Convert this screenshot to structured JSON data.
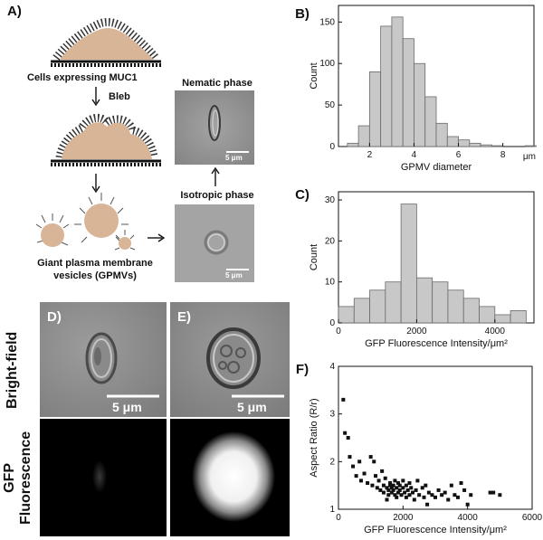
{
  "panelA": {
    "label": "A)",
    "cells_label": "Cells expressing MUC1",
    "bleb_label": "Bleb",
    "gpmv_label_line1": "Giant plasma membrane",
    "gpmv_label_line2": "vesicles (GPMVs)",
    "nematic_title": "Nematic phase",
    "isotropic_title": "Isotropic phase",
    "scale_nematic": "5 μm",
    "scale_isotropic": "5 μm"
  },
  "panelD": {
    "label": "D)",
    "scale": "5 μm"
  },
  "panelE": {
    "label": "E)",
    "scale": "5 μm"
  },
  "row_labels": {
    "brightfield": "Bright-field",
    "gfp_line1": "GFP",
    "gfp_line2": "Fluorescence"
  },
  "colors": {
    "cell": "#d8b596",
    "hist_fill": "#c8c8c8",
    "hist_edge": "#6a6a6a",
    "scatter": "#111111"
  },
  "chart_data": [
    {
      "panel": "B)",
      "type": "bar",
      "xlabel": "GPMV diameter",
      "x_unit": "μm",
      "ylabel": "Count",
      "xlim": [
        0.6,
        9.4
      ],
      "ylim": [
        0,
        170
      ],
      "xticks": [
        2,
        4,
        6,
        8
      ],
      "yticks": [
        0,
        50,
        100,
        150
      ],
      "bin_width": 0.5,
      "bin_starts": [
        1.0,
        1.5,
        2.0,
        2.5,
        3.0,
        3.5,
        4.0,
        4.5,
        5.0,
        5.5,
        6.0,
        6.5,
        7.0,
        7.5,
        8.0,
        8.5,
        9.0
      ],
      "values": [
        4,
        25,
        90,
        145,
        156,
        130,
        100,
        60,
        28,
        12,
        8,
        4,
        2,
        1,
        0,
        0,
        1
      ]
    },
    {
      "panel": "C)",
      "type": "bar",
      "xlabel": "GFP Fluorescence Intensity/μm²",
      "ylabel": "Count",
      "xlim": [
        0,
        5000
      ],
      "ylim": [
        0,
        32
      ],
      "xticks": [
        0,
        2000,
        4000
      ],
      "yticks": [
        0,
        10,
        20,
        30
      ],
      "bin_width": 400,
      "bin_starts": [
        0,
        400,
        800,
        1200,
        1600,
        2000,
        2400,
        2800,
        3200,
        3600,
        4000,
        4400
      ],
      "values": [
        4,
        6,
        8,
        10,
        29,
        11,
        10,
        8,
        6,
        4,
        2,
        3
      ]
    },
    {
      "panel": "F)",
      "type": "scatter",
      "xlabel": "GFP Fluorescence Intensity/μm²",
      "ylabel": "Aspect Ratio (R/r)",
      "xlim": [
        0,
        6000
      ],
      "ylim": [
        1,
        4
      ],
      "xticks": [
        0,
        2000,
        4000,
        6000
      ],
      "yticks": [
        1,
        2,
        3,
        4
      ],
      "points": [
        [
          150,
          3.3
        ],
        [
          200,
          2.6
        ],
        [
          300,
          2.5
        ],
        [
          350,
          2.1
        ],
        [
          450,
          1.9
        ],
        [
          550,
          1.7
        ],
        [
          650,
          2.0
        ],
        [
          700,
          1.6
        ],
        [
          800,
          1.75
        ],
        [
          900,
          1.55
        ],
        [
          1000,
          2.1
        ],
        [
          1050,
          1.5
        ],
        [
          1100,
          2.0
        ],
        [
          1150,
          1.7
        ],
        [
          1200,
          1.45
        ],
        [
          1250,
          1.6
        ],
        [
          1300,
          1.4
        ],
        [
          1350,
          1.8
        ],
        [
          1400,
          1.5
        ],
        [
          1400,
          1.35
        ],
        [
          1450,
          1.65
        ],
        [
          1500,
          1.45
        ],
        [
          1550,
          1.4
        ],
        [
          1550,
          1.3
        ],
        [
          1600,
          1.55
        ],
        [
          1600,
          1.5
        ],
        [
          1650,
          1.45
        ],
        [
          1650,
          1.35
        ],
        [
          1700,
          1.5
        ],
        [
          1700,
          1.4
        ],
        [
          1750,
          1.6
        ],
        [
          1750,
          1.3
        ],
        [
          1800,
          1.45
        ],
        [
          1800,
          1.25
        ],
        [
          1850,
          1.55
        ],
        [
          1850,
          1.35
        ],
        [
          1900,
          1.4
        ],
        [
          1900,
          1.5
        ],
        [
          1950,
          1.3
        ],
        [
          2000,
          1.45
        ],
        [
          2000,
          1.6
        ],
        [
          2050,
          1.35
        ],
        [
          2100,
          1.5
        ],
        [
          2100,
          1.25
        ],
        [
          2150,
          1.4
        ],
        [
          2200,
          1.55
        ],
        [
          2200,
          1.3
        ],
        [
          2250,
          1.45
        ],
        [
          2300,
          1.35
        ],
        [
          2350,
          1.2
        ],
        [
          2400,
          1.4
        ],
        [
          2500,
          1.3
        ],
        [
          2600,
          1.45
        ],
        [
          2650,
          1.25
        ],
        [
          2700,
          1.5
        ],
        [
          2800,
          1.35
        ],
        [
          2900,
          1.3
        ],
        [
          3000,
          1.25
        ],
        [
          3100,
          1.4
        ],
        [
          3200,
          1.3
        ],
        [
          3300,
          1.35
        ],
        [
          3400,
          1.2
        ],
        [
          3500,
          1.5
        ],
        [
          3600,
          1.3
        ],
        [
          3700,
          1.25
        ],
        [
          3900,
          1.4
        ],
        [
          4000,
          1.1
        ],
        [
          4100,
          1.3
        ],
        [
          4700,
          1.35
        ],
        [
          4800,
          1.35
        ],
        [
          5000,
          1.3
        ],
        [
          2450,
          1.6
        ],
        [
          1500,
          1.2
        ],
        [
          2750,
          1.1
        ],
        [
          3800,
          1.55
        ]
      ]
    }
  ]
}
